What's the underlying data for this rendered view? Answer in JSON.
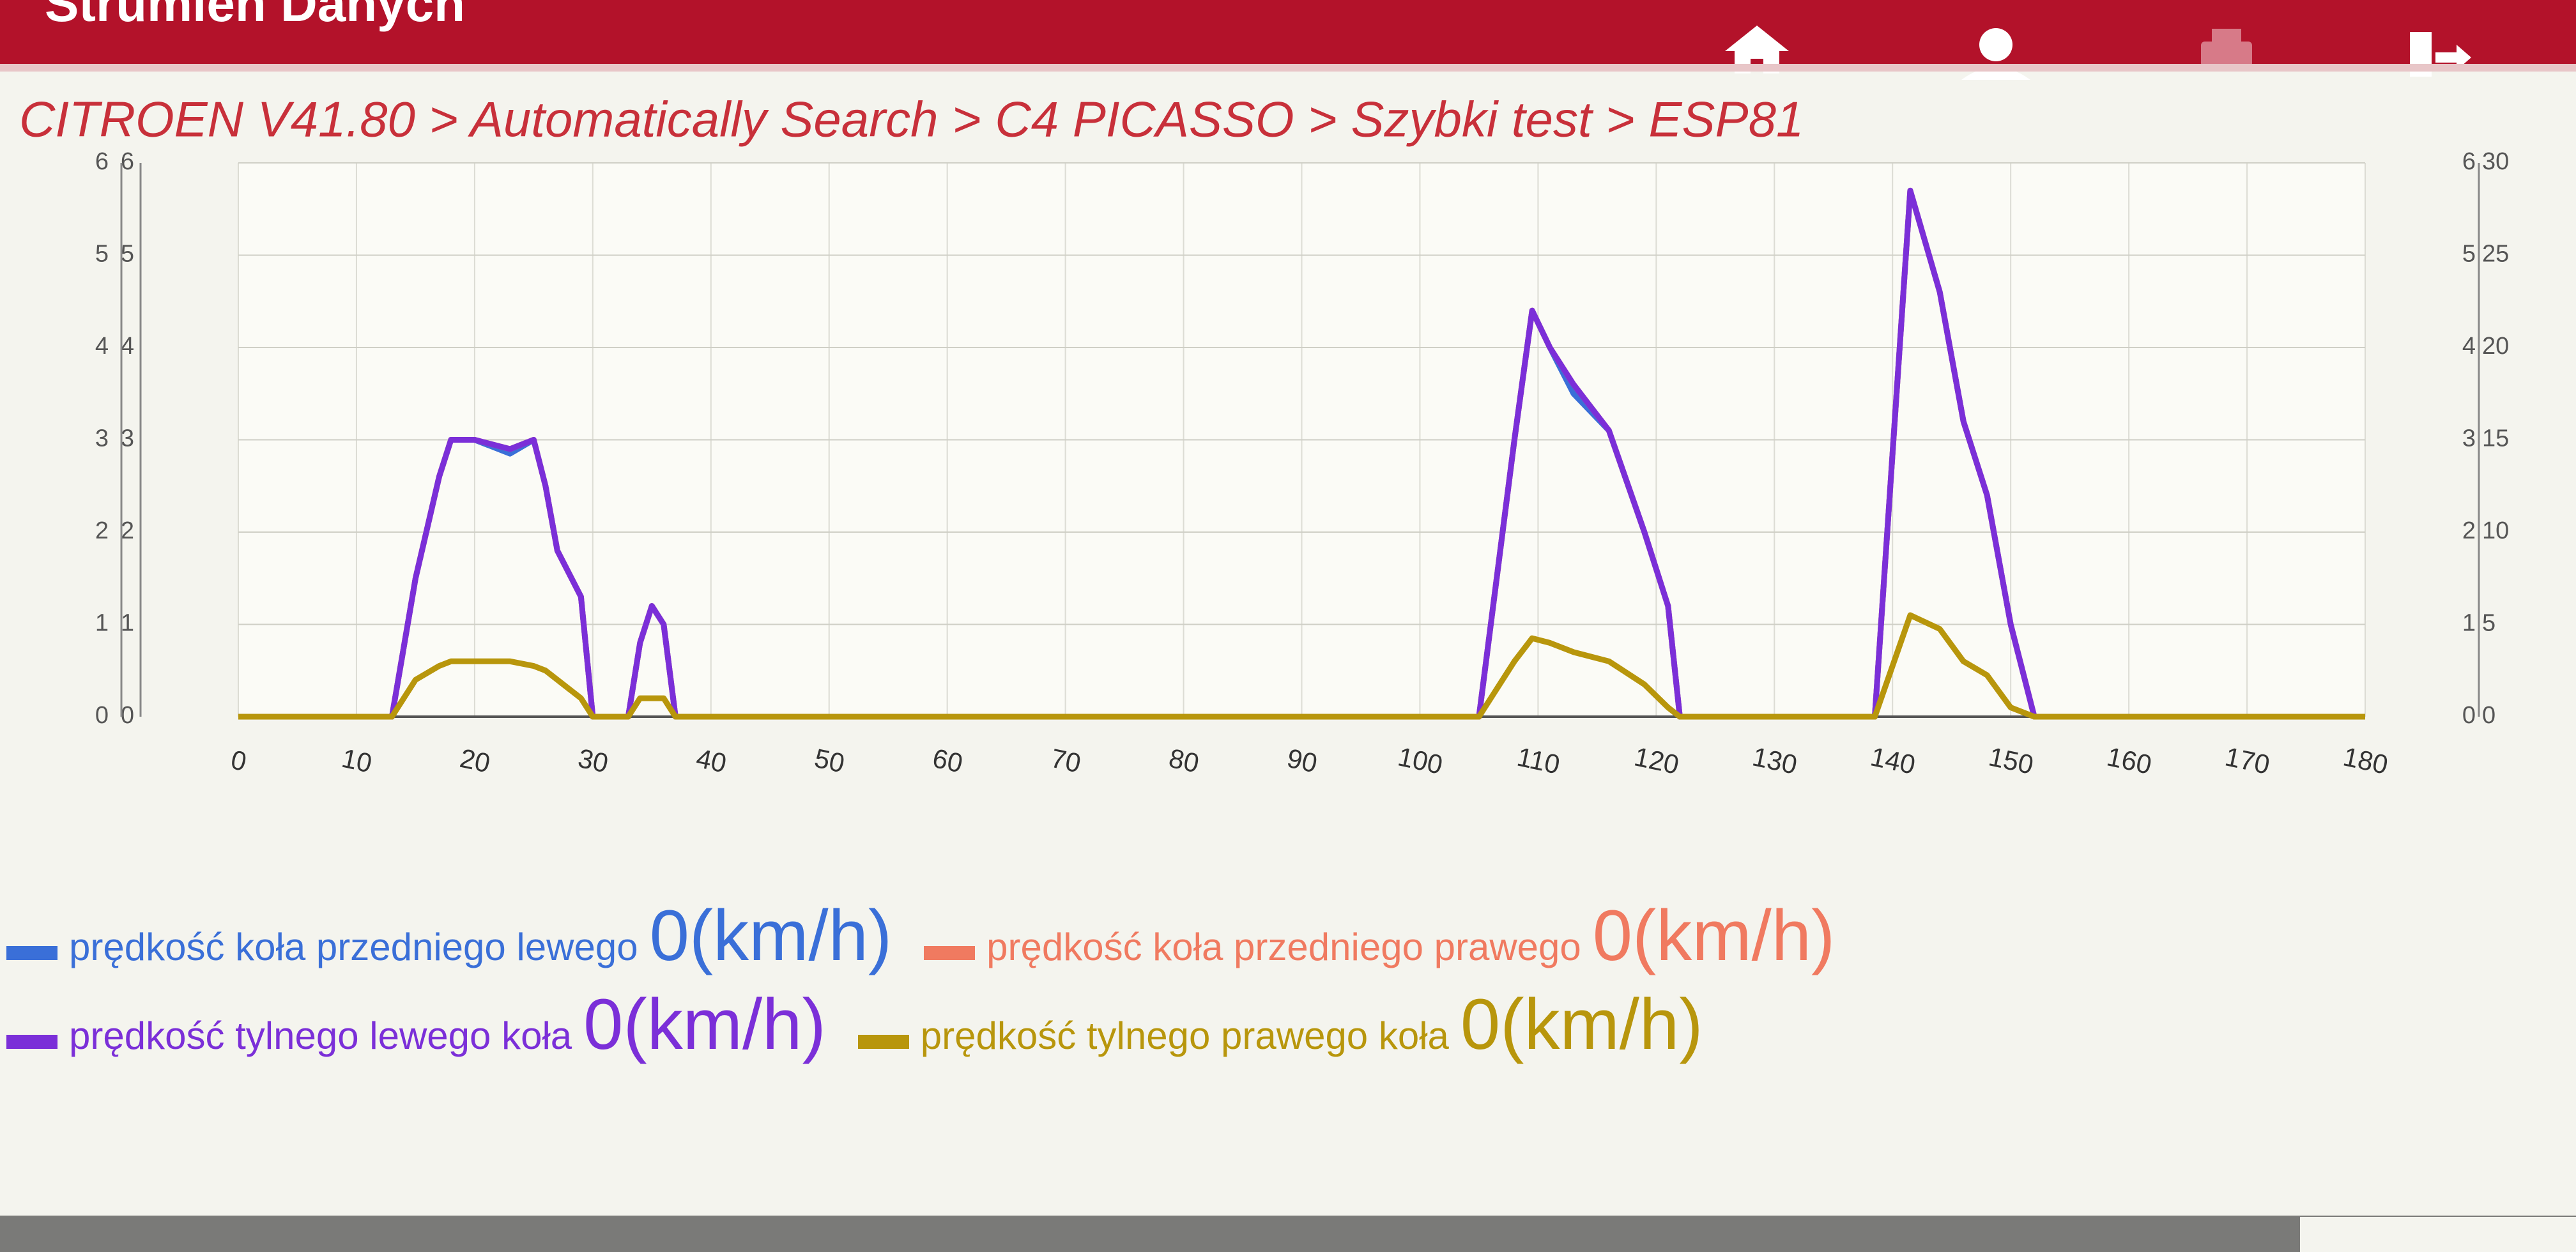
{
  "header": {
    "title": "Strumien Danych"
  },
  "breadcrumb": "CITROEN V41.80 > Automatically Search > C4 PICASSO >  Szybki test  > ESP81",
  "chart_data": {
    "type": "line",
    "x": [
      0,
      13,
      15,
      17,
      18,
      20,
      23,
      25,
      26,
      27,
      29,
      30,
      33,
      34,
      35,
      36,
      37,
      105,
      108,
      109.5,
      111,
      113,
      116,
      119,
      121,
      122,
      138.5,
      141.5,
      144,
      146,
      148,
      150,
      152,
      180
    ],
    "xlim": [
      0,
      180
    ],
    "xticks": [
      0,
      10,
      20,
      30,
      40,
      50,
      60,
      70,
      80,
      90,
      100,
      110,
      120,
      130,
      140,
      150,
      160,
      170,
      180
    ],
    "ylim": [
      0,
      6
    ],
    "yticks": [
      0,
      1,
      2,
      3,
      4,
      5,
      6
    ],
    "y2lim": [
      0,
      30
    ],
    "y2ticks": [
      0,
      5,
      10,
      15,
      20,
      25,
      30
    ],
    "grid": true,
    "series": [
      {
        "name": "prędkość koła przedniego lewego",
        "color": "#3a6fd8",
        "current": {
          "value": 0,
          "label": "0(km/h)"
        },
        "values": [
          0,
          0,
          1.5,
          2.6,
          3.0,
          3.0,
          2.85,
          3.0,
          2.5,
          1.8,
          1.3,
          0,
          0,
          0.8,
          1.2,
          1.0,
          0,
          0,
          3.0,
          4.4,
          4.0,
          3.5,
          3.1,
          2.0,
          1.2,
          0,
          0,
          5.7,
          4.6,
          3.2,
          2.4,
          1.0,
          0,
          0
        ]
      },
      {
        "name": "prędkość koła przedniego prawego",
        "color": "#f07a60",
        "current": {
          "value": 0,
          "label": "0(km/h)"
        },
        "values": [
          0,
          0,
          1.5,
          2.6,
          3.0,
          3.0,
          2.9,
          3.0,
          2.5,
          1.8,
          1.3,
          0,
          0,
          0.8,
          1.2,
          1.0,
          0,
          0,
          3.0,
          4.4,
          4.0,
          3.6,
          3.1,
          2.0,
          1.2,
          0,
          0,
          5.7,
          4.6,
          3.2,
          2.4,
          1.0,
          0,
          0
        ]
      },
      {
        "name": "prędkość tylnego lewego koła",
        "color": "#7b2fd8",
        "current": {
          "value": 0,
          "label": "0(km/h)"
        },
        "values": [
          0,
          0,
          1.5,
          2.6,
          3.0,
          3.0,
          2.9,
          3.0,
          2.5,
          1.8,
          1.3,
          0,
          0,
          0.8,
          1.2,
          1.0,
          0,
          0,
          3.0,
          4.4,
          4.0,
          3.6,
          3.1,
          2.0,
          1.2,
          0,
          0,
          5.7,
          4.6,
          3.2,
          2.4,
          1.0,
          0,
          0
        ]
      },
      {
        "name": "prędkość tylnego prawego koła",
        "color": "#b8960c",
        "current": {
          "value": 0,
          "label": "0(km/h)"
        },
        "values": [
          0,
          0,
          0.4,
          0.55,
          0.6,
          0.6,
          0.6,
          0.55,
          0.5,
          0.4,
          0.2,
          0,
          0,
          0.2,
          0.2,
          0.2,
          0,
          0,
          0.6,
          0.85,
          0.8,
          0.7,
          0.6,
          0.35,
          0.1,
          0,
          0,
          1.1,
          0.95,
          0.6,
          0.45,
          0.1,
          0,
          0
        ]
      }
    ]
  }
}
